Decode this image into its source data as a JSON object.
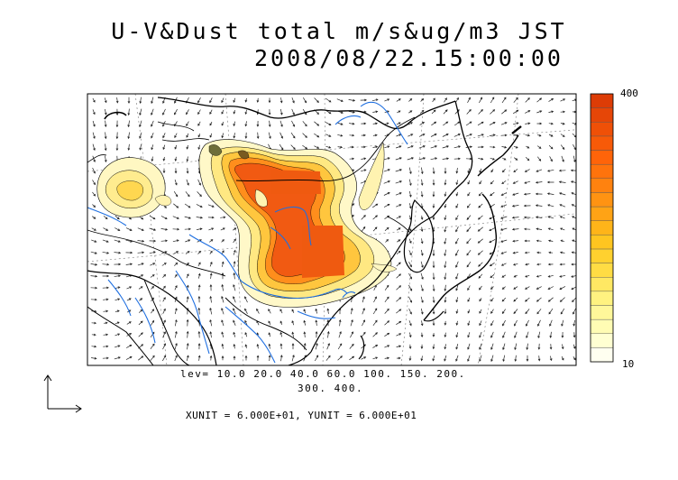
{
  "title": {
    "line1": "U-V&Dust total m/s&ug/m3 JST",
    "line2": "2008/08/22.15:00:00"
  },
  "legend_text": {
    "levels_line1": "lev= 10.0 20.0 40.0 60.0 100. 150. 200.",
    "levels_line2": "300. 400.",
    "units": "XUNIT = 6.000E+01, YUNIT = 6.000E+01"
  },
  "colorbar": {
    "max_label": "400",
    "min_label": "10",
    "colors": [
      "#fffff0",
      "#ffffd2",
      "#fffcb4",
      "#fff79a",
      "#fff280",
      "#ffe863",
      "#ffdc44",
      "#ffd12f",
      "#ffc520",
      "#ffb419",
      "#ffa315",
      "#ff9312",
      "#ff820f",
      "#ff730c",
      "#ff6409",
      "#f75a08",
      "#ef5007",
      "#e64607",
      "#dd3c06"
    ]
  },
  "colors": {
    "river": "#1f6fe0",
    "coast": "#000000",
    "dust_high": "#ef5a10",
    "dust_low": "#fffbd8"
  }
}
